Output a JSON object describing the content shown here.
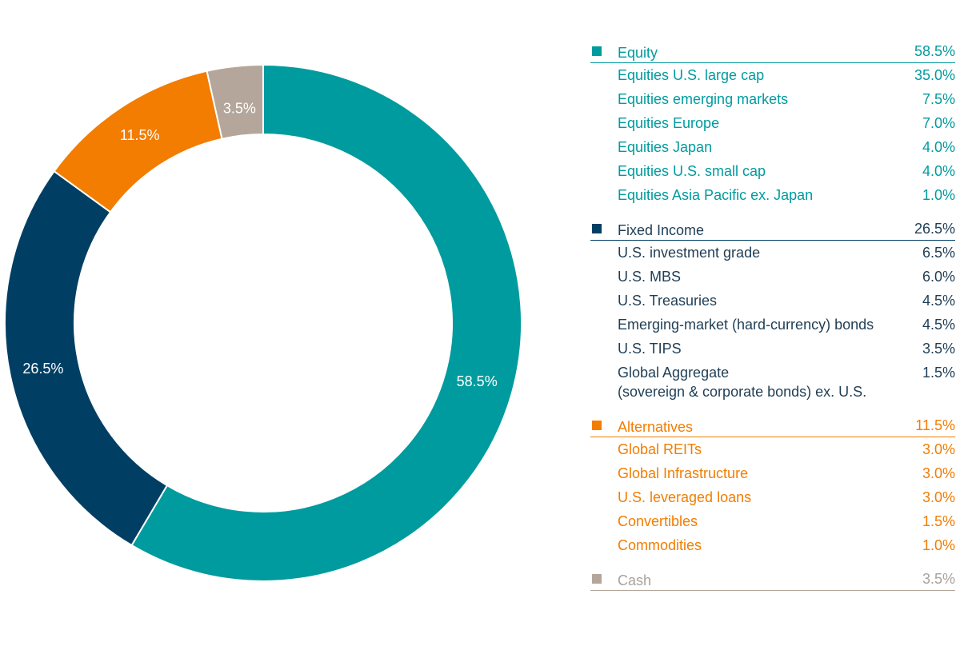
{
  "chart_data": {
    "type": "pie",
    "variant": "donut",
    "slices": [
      {
        "label": "Equity",
        "value": 58.5,
        "display": "58.5%",
        "color": "#009b9e"
      },
      {
        "label": "Fixed Income",
        "value": 26.5,
        "display": "26.5%",
        "color": "#003f63"
      },
      {
        "label": "Alternatives",
        "value": 11.5,
        "display": "11.5%",
        "color": "#f27d00"
      },
      {
        "label": "Cash",
        "value": 3.5,
        "display": "3.5%",
        "color": "#b4a69b"
      }
    ]
  },
  "legend": {
    "groups": [
      {
        "name": "Equity",
        "value": "58.5%",
        "color": "#009b9e",
        "text_color": "#009b9e",
        "items": [
          {
            "label": "Equities U.S. large cap",
            "value": "35.0%"
          },
          {
            "label": "Equities emerging markets",
            "value": "7.5%"
          },
          {
            "label": "Equities Europe",
            "value": "7.0%"
          },
          {
            "label": "Equities Japan",
            "value": "4.0%"
          },
          {
            "label": "Equities U.S. small cap",
            "value": "4.0%"
          },
          {
            "label": "Equities Asia Pacific ex. Japan",
            "value": "1.0%"
          }
        ]
      },
      {
        "name": "Fixed Income",
        "value": "26.5%",
        "color": "#003f63",
        "text_color": "#1f3e55",
        "items": [
          {
            "label": "U.S. investment grade",
            "value": "6.5%"
          },
          {
            "label": "U.S. MBS",
            "value": "6.0%"
          },
          {
            "label": "U.S. Treasuries",
            "value": "4.5%"
          },
          {
            "label": "Emerging-market (hard-currency) bonds",
            "value": "4.5%"
          },
          {
            "label": "U.S. TIPS",
            "value": "3.5%"
          },
          {
            "label": "Global Aggregate\n(sovereign & corporate bonds) ex. U.S.",
            "value": "1.5%"
          }
        ]
      },
      {
        "name": "Alternatives",
        "value": "11.5%",
        "color": "#f27d00",
        "text_color": "#f27d00",
        "items": [
          {
            "label": "Global REITs",
            "value": "3.0%"
          },
          {
            "label": "Global Infrastructure",
            "value": "3.0%"
          },
          {
            "label": "U.S. leveraged loans",
            "value": "3.0%"
          },
          {
            "label": "Convertibles",
            "value": "1.5%"
          },
          {
            "label": "Commodities",
            "value": "1.0%"
          }
        ]
      },
      {
        "name": "Cash",
        "value": "3.5%",
        "color": "#b4a69b",
        "text_color": "#a8a29c",
        "items": []
      }
    ]
  }
}
